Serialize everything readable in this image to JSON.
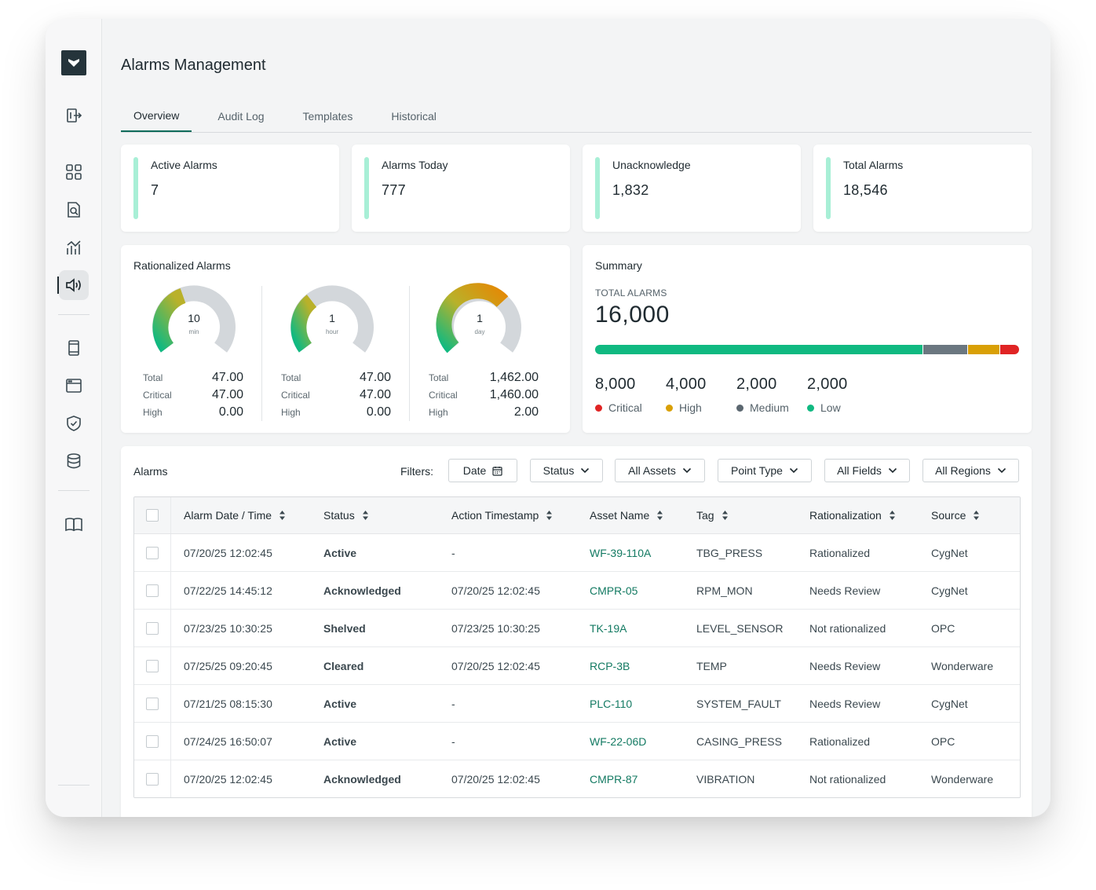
{
  "app": {
    "title": "Alarms Management"
  },
  "tabs": [
    {
      "label": "Overview",
      "active": true
    },
    {
      "label": "Audit Log"
    },
    {
      "label": "Templates"
    },
    {
      "label": "Historical"
    }
  ],
  "sidebar": {
    "icons": [
      "logo-icon",
      "sign-out-icon",
      "dashboard-grid-icon",
      "document-search-icon",
      "analytics-chart-icon",
      "speaker-icon",
      "tablet-icon",
      "browser-window-icon",
      "shield-check-icon",
      "database-icon",
      "book-icon"
    ]
  },
  "stats": [
    {
      "label": "Active Alarms",
      "value": "7"
    },
    {
      "label": "Alarms Today",
      "value": "777"
    },
    {
      "label": "Unacknowledge",
      "value": "1,832"
    },
    {
      "label": "Total Alarms",
      "value": "18,546"
    }
  ],
  "rationalized": {
    "title": "Rationalized Alarms",
    "gauges": [
      {
        "num": "10",
        "unit": "min",
        "rows": [
          {
            "k": "Total",
            "v": "47.00"
          },
          {
            "k": "Critical",
            "v": "47.00"
          },
          {
            "k": "High",
            "v": "0.00"
          }
        ]
      },
      {
        "num": "1",
        "unit": "hour",
        "rows": [
          {
            "k": "Total",
            "v": "47.00"
          },
          {
            "k": "Critical",
            "v": "47.00"
          },
          {
            "k": "High",
            "v": "0.00"
          }
        ]
      },
      {
        "num": "1",
        "unit": "day",
        "rows": [
          {
            "k": "Total",
            "v": "1,462.00"
          },
          {
            "k": "Critical",
            "v": "1,460.00"
          },
          {
            "k": "High",
            "v": "2.00"
          }
        ]
      }
    ]
  },
  "summary": {
    "title": "Summary",
    "subtitle": "TOTAL ALARMS",
    "total": "16,000",
    "items": [
      {
        "value": "8,000",
        "label": "Critical",
        "color": "#e02424"
      },
      {
        "value": "4,000",
        "label": "High",
        "color": "#d9a006"
      },
      {
        "value": "2,000",
        "label": "Medium",
        "color": "#5b6770"
      },
      {
        "value": "2,000",
        "label": "Low",
        "color": "#10b981"
      }
    ],
    "bar_colors": {
      "main": "#10b981",
      "gray": "#6b7780",
      "amber": "#d9a006",
      "red": "#e02424"
    }
  },
  "alarms": {
    "title": "Alarms",
    "filters_label": "Filters:",
    "filters": [
      "Date",
      "Status",
      "All Assets",
      "Point Type",
      "All Fields",
      "All Regions"
    ],
    "columns": [
      "Alarm Date / Time",
      "Status",
      "Action Timestamp",
      "Asset Name",
      "Tag",
      "Rationalization",
      "Source"
    ],
    "rows": [
      {
        "date": "07/20/25 12:02:45",
        "status": "Active",
        "action": "-",
        "asset": "WF-39-110A",
        "tag": "TBG_PRESS",
        "rational": "Rationalized",
        "source": "CygNet"
      },
      {
        "date": "07/22/25 14:45:12",
        "status": "Acknowledged",
        "action": "07/20/25 12:02:45",
        "asset": "CMPR-05",
        "tag": "RPM_MON",
        "rational": "Needs Review",
        "source": "CygNet"
      },
      {
        "date": "07/23/25 10:30:25",
        "status": "Shelved",
        "action": "07/23/25 10:30:25",
        "asset": "TK-19A",
        "tag": "LEVEL_SENSOR",
        "rational": "Not rationalized",
        "source": "OPC"
      },
      {
        "date": "07/25/25 09:20:45",
        "status": "Cleared",
        "action": "07/20/25 12:02:45",
        "asset": "RCP-3B",
        "tag": "TEMP",
        "rational": "Needs Review",
        "source": "Wonderware"
      },
      {
        "date": "07/21/25 08:15:30",
        "status": "Active",
        "action": "-",
        "asset": "PLC-110",
        "tag": "SYSTEM_FAULT",
        "rational": "Needs Review",
        "source": "CygNet"
      },
      {
        "date": "07/24/25 16:50:07",
        "status": "Active",
        "action": "-",
        "asset": "WF-22-06D",
        "tag": "CASING_PRESS",
        "rational": "Rationalized",
        "source": "OPC"
      },
      {
        "date": "07/20/25 12:02:45",
        "status": "Acknowledged",
        "action": "07/20/25 12:02:45",
        "asset": "CMPR-87",
        "tag": "VIBRATION",
        "rational": "Not rationalized",
        "source": "Wonderware"
      }
    ]
  }
}
